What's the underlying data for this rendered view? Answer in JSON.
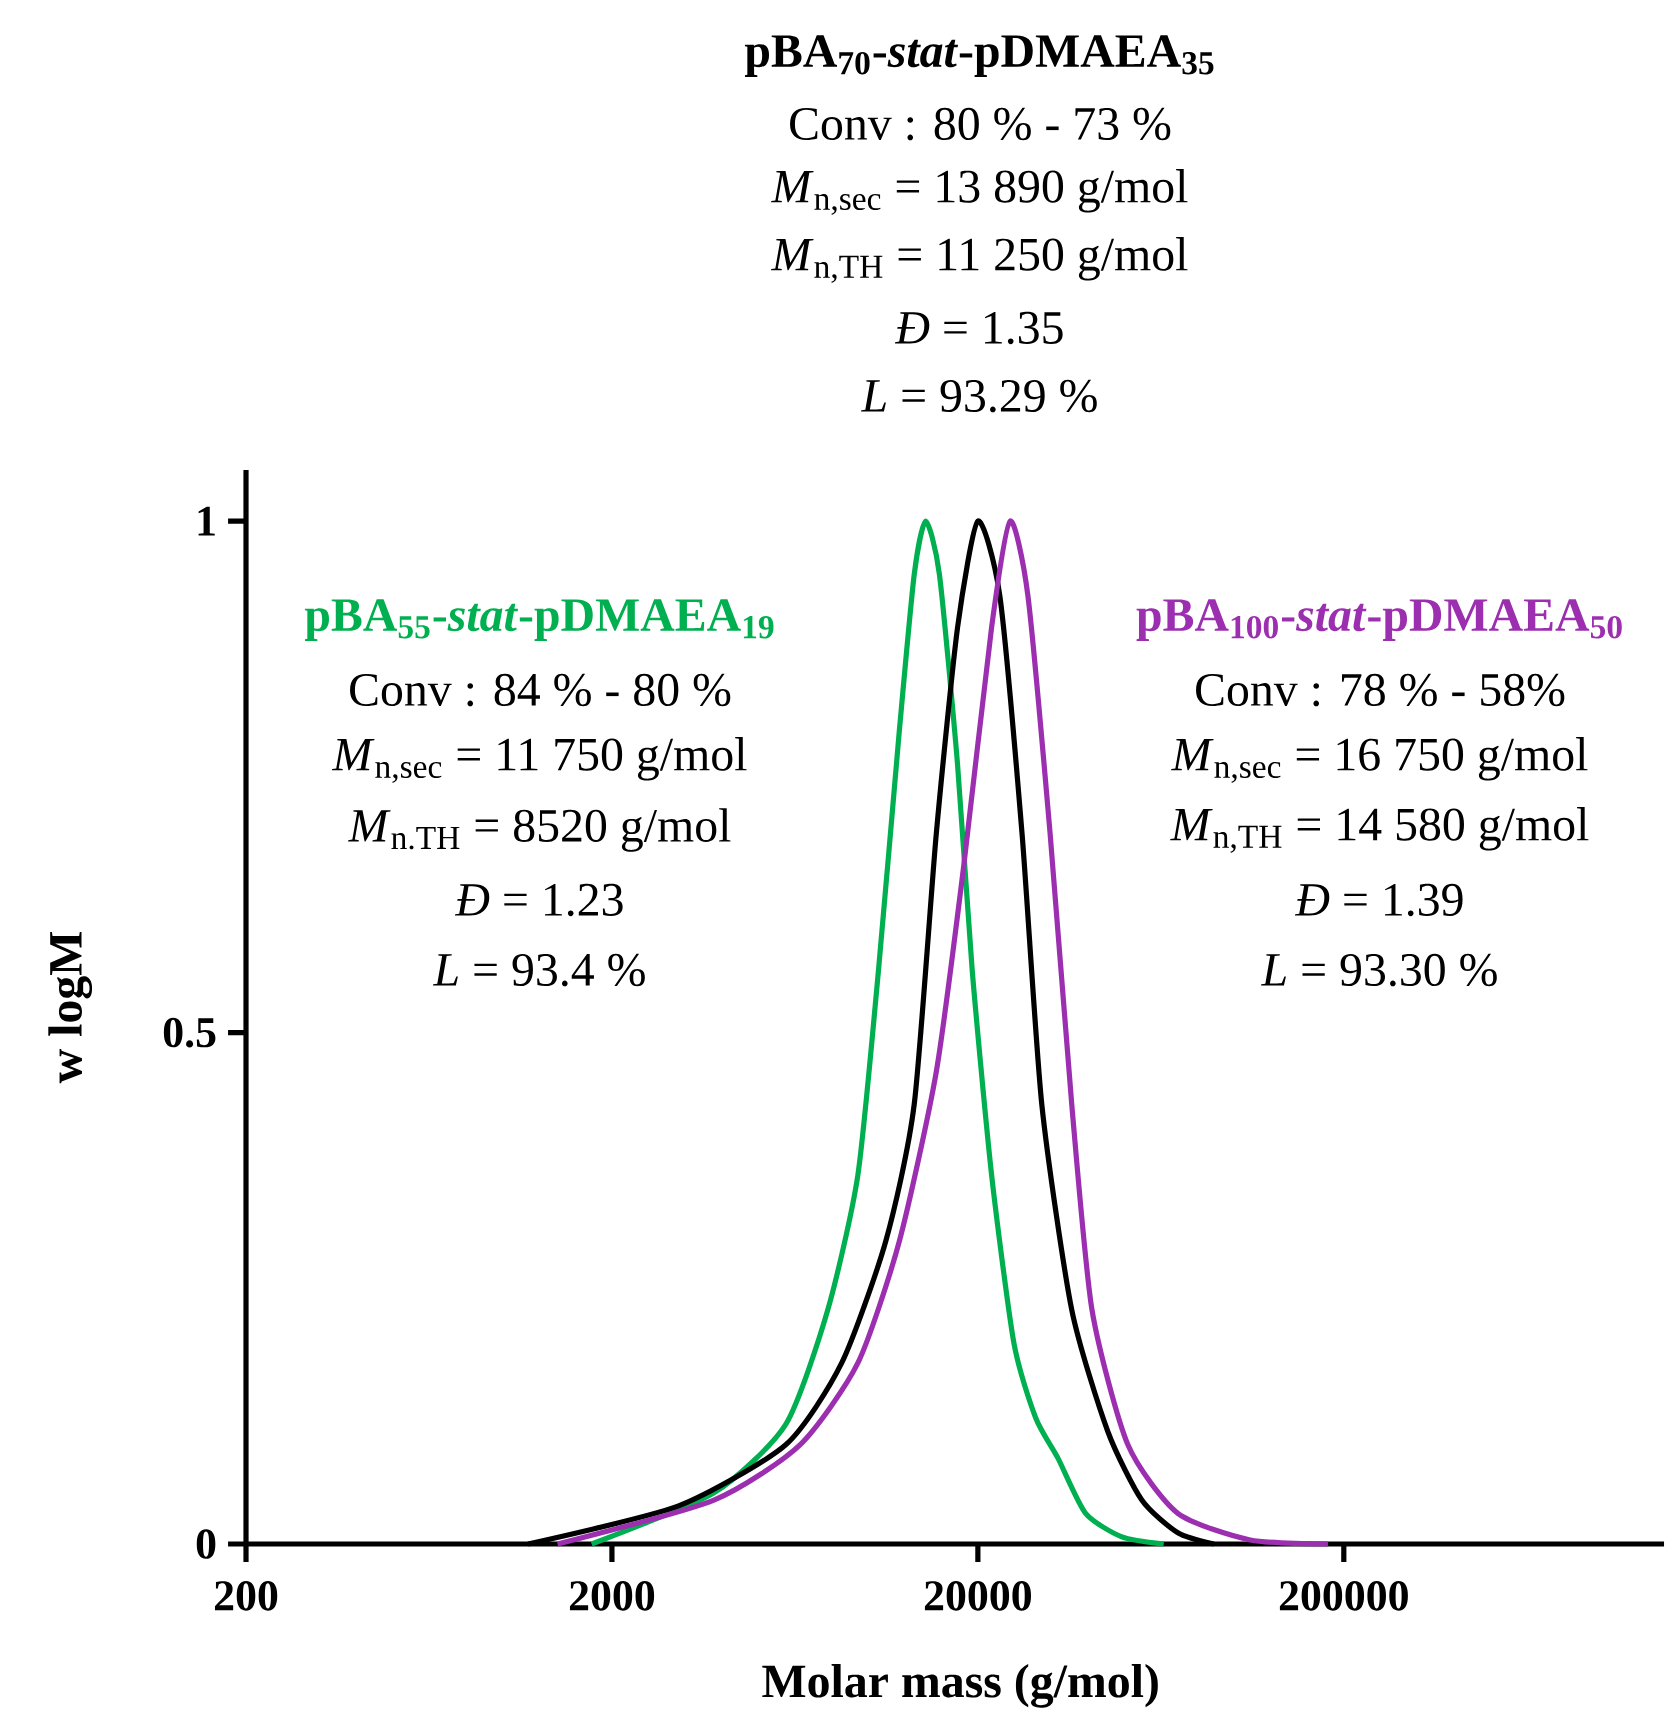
{
  "chart_data": {
    "type": "line",
    "log": "x",
    "marker": "none",
    "xlabel": "Molar mass (g/mol)",
    "ylabel": "w logM",
    "xlim": [
      200,
      1500000
    ],
    "ylim": [
      0,
      1.05
    ],
    "xticks": [
      200,
      2000,
      20000,
      200000
    ],
    "yticks": [
      0,
      0.5,
      1
    ],
    "series": [
      {
        "name": "pBA$_{55}$-*stat*-pDMAEA$_{19}$",
        "color": "#00b050",
        "x": [
          1760,
          3800,
          5970,
          7780,
          9400,
          10700,
          12200,
          13400,
          14400,
          15700,
          17600,
          19300,
          21800,
          25100,
          28800,
          33100,
          39400,
          49500,
          64400
        ],
        "values": [
          0,
          0.05,
          0.117,
          0.229,
          0.361,
          0.561,
          0.795,
          0.948,
          1,
          0.948,
          0.762,
          0.561,
          0.361,
          0.196,
          0.123,
          0.084,
          0.03,
          0.007,
          0
        ]
      },
      {
        "name": "pBA$_{70}$-*stat*-pDMAEA$_{35}$",
        "color": "#000000",
        "x": [
          1180,
          3030,
          5970,
          8490,
          11200,
          13400,
          15400,
          17600,
          20000,
          22960,
          26400,
          29900,
          36100,
          45300,
          56100,
          70400,
          88300
        ],
        "values": [
          0,
          0.037,
          0.097,
          0.177,
          0.296,
          0.43,
          0.695,
          0.896,
          1,
          0.927,
          0.695,
          0.43,
          0.229,
          0.11,
          0.043,
          0.011,
          0
        ]
      },
      {
        "name": "pBA$_{100}$-*stat*-pDMAEA$_{50}$",
        "color": "#9c2fb0",
        "x": [
          1420,
          3800,
          6530,
          9400,
          12200,
          15400,
          18300,
          21800,
          24500,
          27400,
          31500,
          36100,
          41000,
          51400,
          70400,
          111000,
          181000
        ],
        "values": [
          0,
          0.043,
          0.097,
          0.177,
          0.296,
          0.462,
          0.663,
          0.896,
          1,
          0.927,
          0.695,
          0.43,
          0.229,
          0.097,
          0.03,
          0.004,
          0
        ]
      }
    ],
    "annotations": [
      "Conv : 84 % - 80 %",
      "*M*$_{n,sec}$ = 11 750 g/mol",
      "*M*$_{n.TH}$ = 8520 g/mol",
      "*Đ* = 1.23",
      "*L* = 93.4 %",
      "Conv : 80 % - 73 %",
      "*M*$_{n,sec}$ = 13 890 g/mol",
      "*M*$_{n,TH}$ = 11 250 g/mol",
      "*Đ* = 1.35",
      "*L* = 93.29 %",
      "Conv : 78 % - 58%",
      "*M*$_{n,sec}$ = 16 750 g/mol",
      "*M*$_{n,TH}$ = 14 580 g/mol",
      "*Đ* = 1.39",
      "*L* = 93.30 %"
    ]
  }
}
